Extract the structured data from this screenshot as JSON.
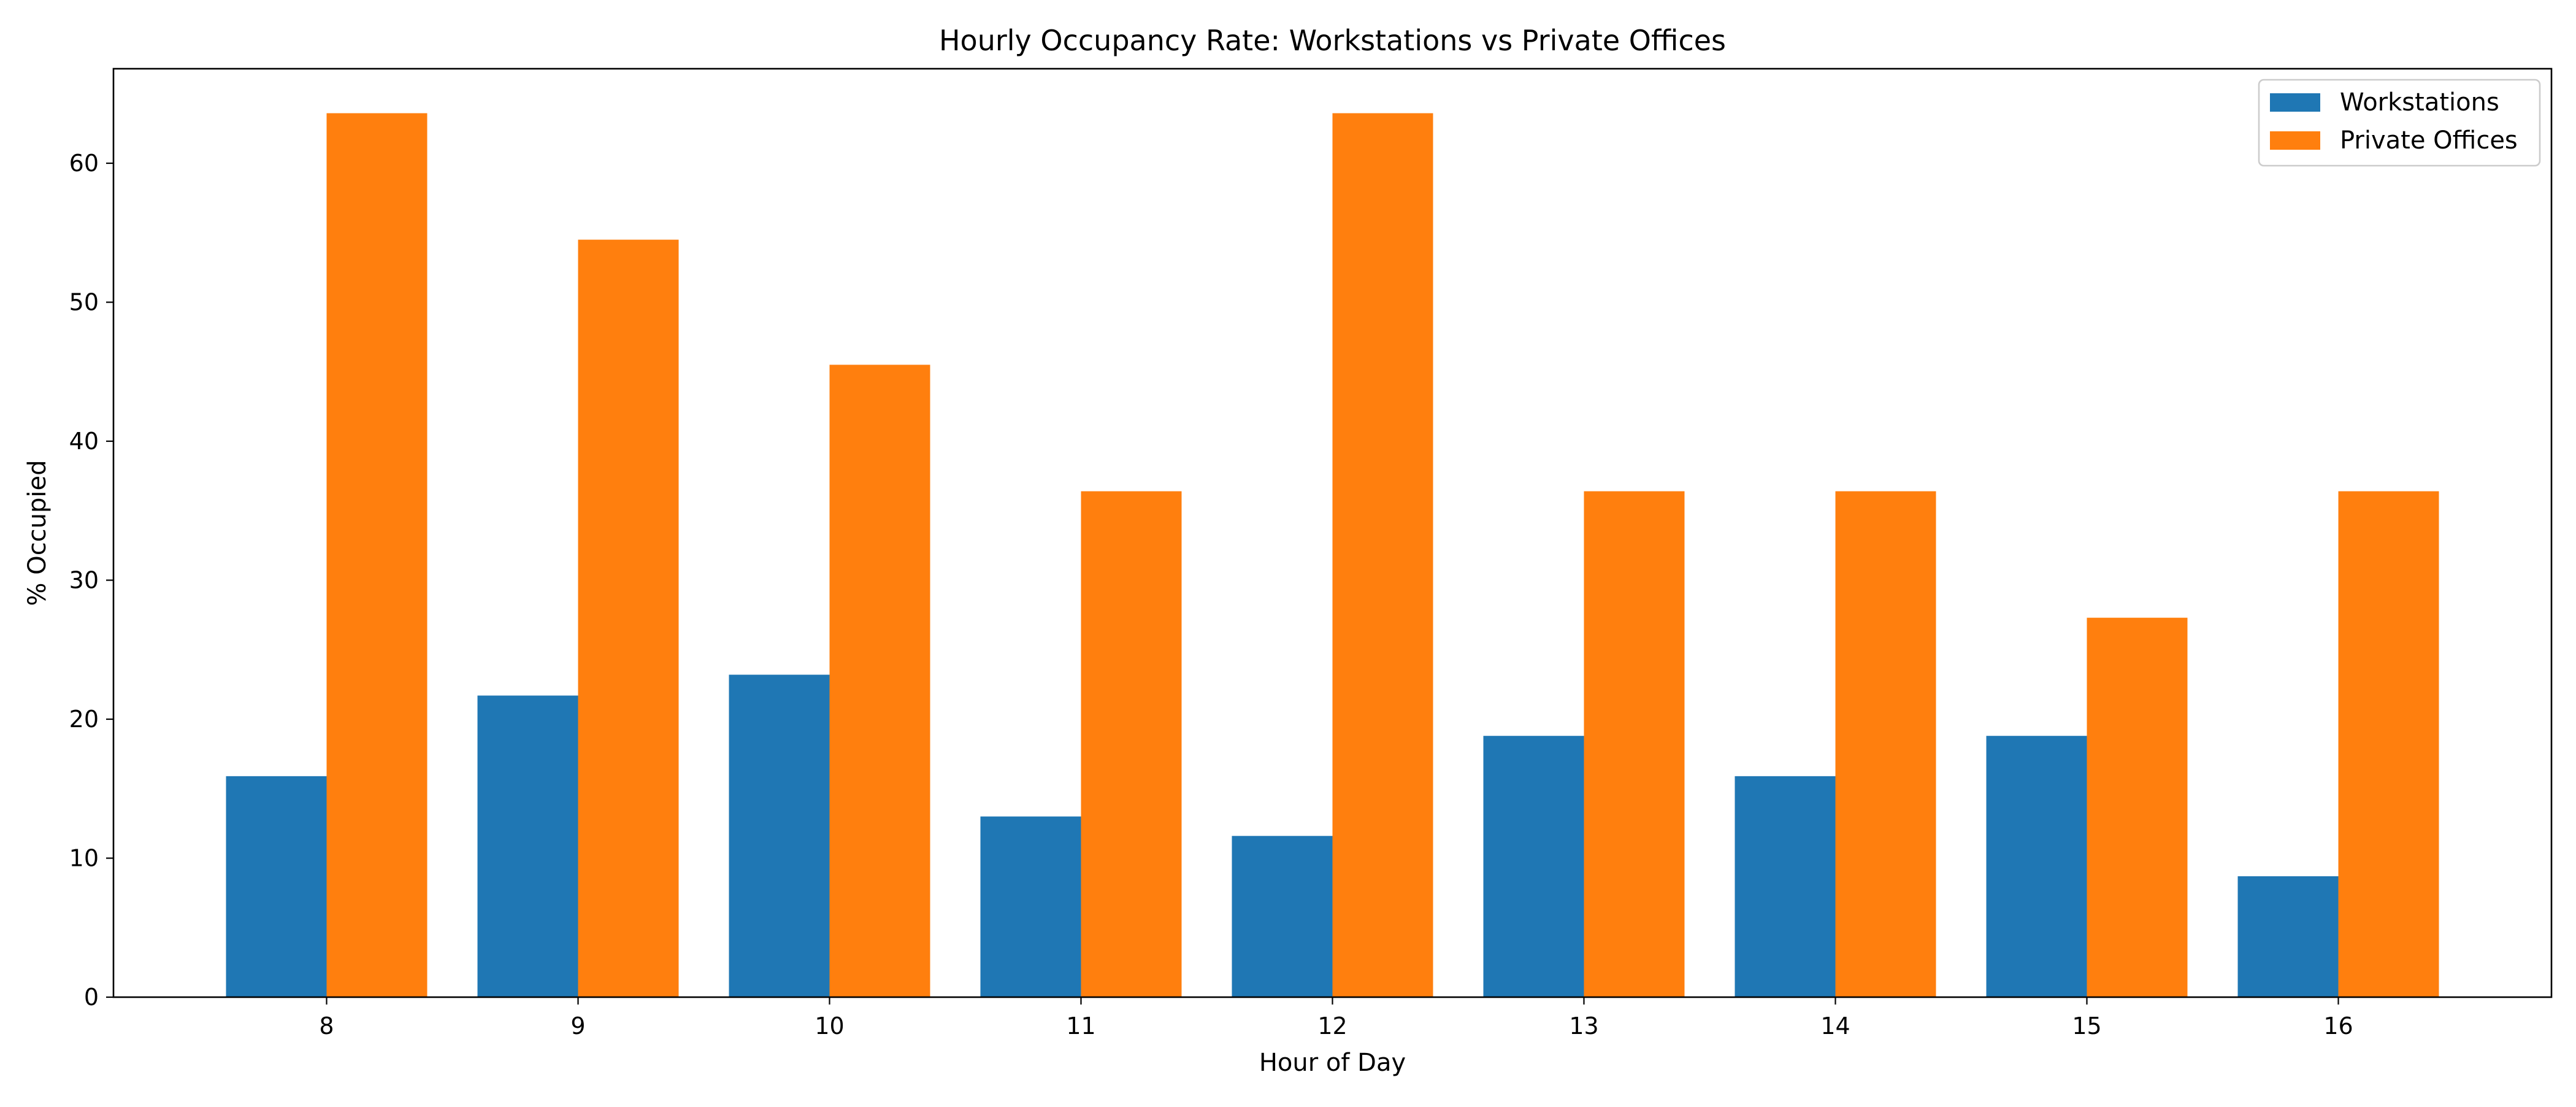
{
  "chart_data": {
    "type": "bar",
    "title": "Hourly Occupancy Rate: Workstations vs Private Offices",
    "xlabel": "Hour of Day",
    "ylabel": "% Occupied",
    "categories": [
      "8",
      "9",
      "10",
      "11",
      "12",
      "13",
      "14",
      "15",
      "16"
    ],
    "series": [
      {
        "name": "Workstations",
        "color": "#1f77b4",
        "values": [
          15.9,
          21.7,
          23.2,
          13.0,
          11.6,
          18.8,
          15.9,
          18.8,
          8.7
        ]
      },
      {
        "name": "Private Offices",
        "color": "#ff7f0e",
        "values": [
          63.6,
          54.5,
          45.5,
          36.4,
          63.6,
          36.4,
          36.4,
          27.3,
          36.4
        ]
      }
    ],
    "ylim": [
      0,
      66.8
    ],
    "yticks": [
      0,
      10,
      20,
      30,
      40,
      50,
      60
    ],
    "grid": false,
    "legend_position": "top-right"
  }
}
